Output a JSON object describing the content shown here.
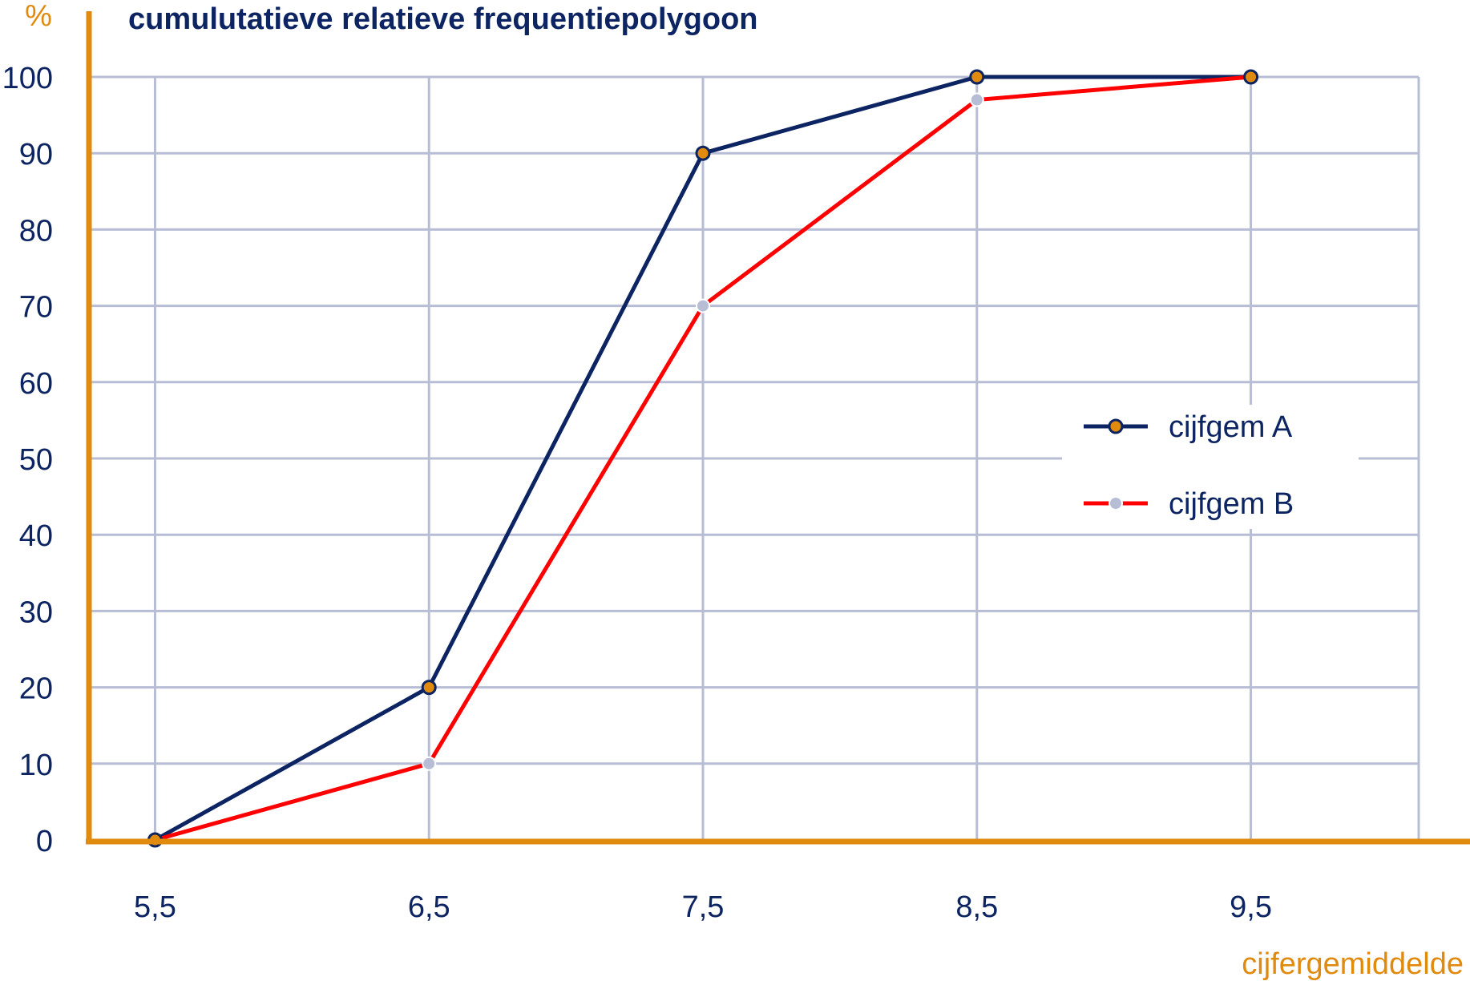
{
  "chart_data": {
    "type": "line",
    "title": "cumulutatieve relatieve frequentiepolygoon",
    "ylabel": "%",
    "xlabel": "cijfergemiddelde",
    "x_ticks": [
      "5,5",
      "6,5",
      "7,5",
      "8,5",
      "9,5"
    ],
    "x_values": [
      5.5,
      6.5,
      7.5,
      8.5,
      9.5
    ],
    "y_ticks": [
      "0",
      "10",
      "20",
      "30",
      "40",
      "50",
      "60",
      "70",
      "80",
      "90",
      "100"
    ],
    "xlim": [
      5.25,
      10.3
    ],
    "ylim": [
      0,
      100
    ],
    "grid": true,
    "legend_position": "right",
    "series": [
      {
        "name": "cijfgem A",
        "values": [
          0,
          20,
          90,
          100,
          100
        ],
        "color": "#0c2461",
        "marker_color": "#e08a0e"
      },
      {
        "name": "cijfgem B",
        "values": [
          0,
          10,
          70,
          97,
          100
        ],
        "color": "#ff0000",
        "marker_color": "#b8bdd6"
      }
    ],
    "colors": {
      "axis": "#e08a0e",
      "grid": "#b8bdd6",
      "text": "#0c2461"
    }
  }
}
